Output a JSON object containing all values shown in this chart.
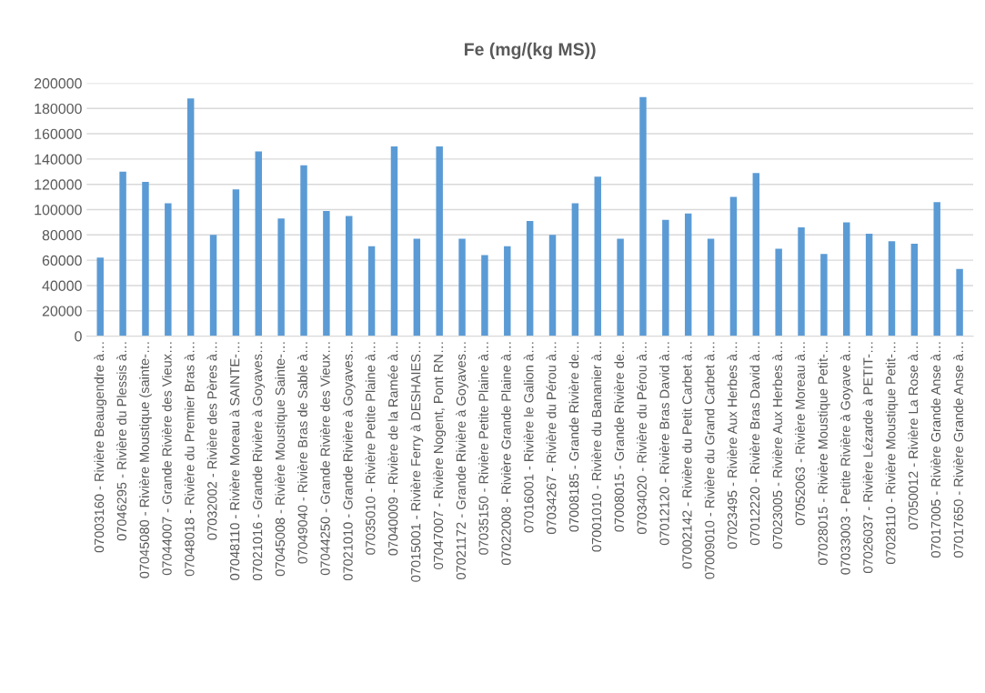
{
  "chart_data": {
    "type": "bar",
    "title": "Fe (mg/(kg MS))",
    "categories": [
      "07003160 - Rivière Beaugendre à…",
      "07046295 - Rivière du Plessis à…",
      "07045080 - Rivière Moustique (sainte-…",
      "07044007 - Grande Rivière des Vieux…",
      "07048018 - Rivière du Premier Bras à…",
      "07032002 - Rivière des Pères à…",
      "07048110 - Rivière Moreau à SAINTE-…",
      "07021016 - Grande Rivière à Goyaves…",
      "07045008 - Rivière Moustique Sainte-…",
      "07049040 - Rivière Bras de Sable à…",
      "07044250 - Grande Rivière des Vieux…",
      "07021010 - Grande Rivière à Goyaves…",
      "07035010 - Rivière Petite Plaine à…",
      "07040009 - Rivière de la Ramée à…",
      "07015001 - Rivière Ferry à DESHAIES…",
      "07047007 - Rivière Nogent, Pont RN…",
      "07021172 - Grande Rivière à Goyaves…",
      "07035150 - Rivière Petite Plaine à…",
      "07022008 - Rivière Grande Plaine à…",
      "07016001 - Rivière le Galion à…",
      "07034267 - Rivière du Pérou à…",
      "07008185 - Grande Rivière de…",
      "07001010 - Rivière du Bananier à…",
      "07008015 - Grande Rivière de…",
      "07034020 - Rivière du Pérou à…",
      "07012120 - Rivière Bras David à…",
      "07002142 - Rivière du Petit Carbet à…",
      "07009010 - Rivière du Grand Carbet à…",
      "07023495 - Rivière Aux Herbes à…",
      "07012220 - Rivière Bras David à…",
      "07023005 - Rivière Aux Herbes à…",
      "07052063 - Rivière Moreau à…",
      "07028015 - Rivière Moustique Petit-…",
      "07033003 - Petite Rivière à Goyave à…",
      "07026037 - Rivière Lézarde à PETIT-…",
      "07028110 - Rivière Moustique Petit-…",
      "07050012 - Rivière La Rose à…",
      "07017005 - Rivière Grande Anse à…",
      "07017650 - Rivière Grande Anse à…"
    ],
    "values": [
      62000,
      130000,
      122000,
      105000,
      188000,
      80000,
      116000,
      146000,
      93000,
      135000,
      99000,
      95000,
      71000,
      150000,
      77000,
      150000,
      77000,
      64000,
      71000,
      91000,
      80000,
      105000,
      126000,
      77000,
      189000,
      92000,
      97000,
      77000,
      110000,
      129000,
      69000,
      86000,
      65000,
      90000,
      81000,
      75000,
      73000,
      106000,
      53000
    ],
    "color": "#5b9bd5",
    "ylim": [
      0,
      200000
    ],
    "yticks": [
      0,
      20000,
      40000,
      60000,
      80000,
      100000,
      120000,
      140000,
      160000,
      180000,
      200000
    ],
    "grid": "y",
    "legend": false
  }
}
